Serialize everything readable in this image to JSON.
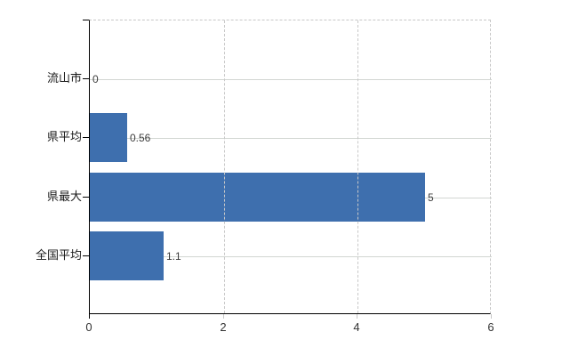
{
  "chart_data": {
    "type": "bar",
    "orientation": "horizontal",
    "title": "",
    "xlabel": "",
    "ylabel": "",
    "categories": [
      "流山市",
      "県平均",
      "県最大",
      "全国平均"
    ],
    "values": [
      0,
      0.56,
      5,
      1.1
    ],
    "value_labels": [
      "0",
      "0.56",
      "5",
      "1.1"
    ],
    "xlim": [
      0,
      6
    ],
    "x_ticks": [
      0,
      2,
      4,
      6
    ],
    "legend_position": "none",
    "grid": {
      "horizontal": "solid-light",
      "vertical": "dashed-light"
    }
  },
  "colors": {
    "bar": "#3e6fae",
    "axis": "#000000",
    "hgrid": "#d2d6d2",
    "vgrid": "#c8c8c8",
    "value_text": "#3d3d3d",
    "category_text": "#1a1a1a",
    "tick_text": "#333333",
    "background": "#ffffff"
  }
}
